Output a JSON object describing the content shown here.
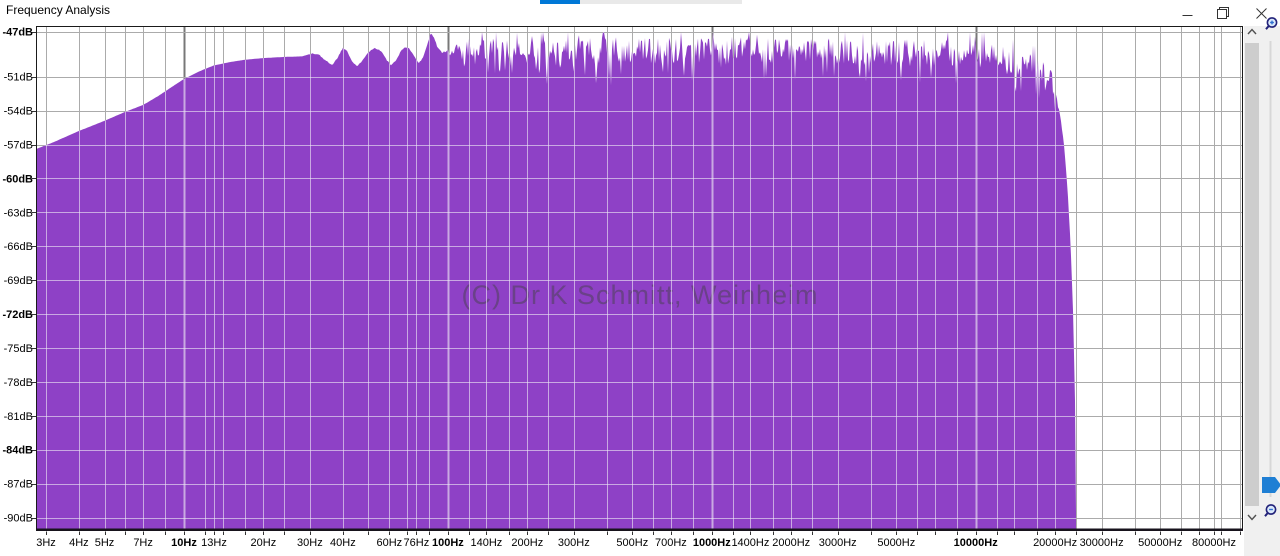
{
  "window": {
    "title": "Frequency Analysis"
  },
  "titlebar": {
    "icons": [
      "minimize-icon",
      "restore-icon",
      "close-icon"
    ]
  },
  "progress": {
    "percent": 20
  },
  "chart_data": {
    "type": "area",
    "title": "Frequency Analysis",
    "watermark": "(C) Dr K Schmitt, Weinheim",
    "x_axis": {
      "scale": "log",
      "unit": "Hz",
      "min_hz": 2.75,
      "max_hz": 103000,
      "labeled_ticks": [
        {
          "label": "3Hz",
          "hz": 3,
          "bold": false
        },
        {
          "label": "4Hz",
          "hz": 4,
          "bold": false
        },
        {
          "label": "5Hz",
          "hz": 5,
          "bold": false
        },
        {
          "label": "7Hz",
          "hz": 7,
          "bold": false
        },
        {
          "label": "10Hz",
          "hz": 10,
          "bold": true
        },
        {
          "label": "13Hz",
          "hz": 13,
          "bold": false
        },
        {
          "label": "20Hz",
          "hz": 20,
          "bold": false
        },
        {
          "label": "30Hz",
          "hz": 30,
          "bold": false
        },
        {
          "label": "40Hz",
          "hz": 40,
          "bold": false
        },
        {
          "label": "60Hz",
          "hz": 60,
          "bold": false
        },
        {
          "label": "76Hz",
          "hz": 76,
          "bold": false
        },
        {
          "label": "100Hz",
          "hz": 100,
          "bold": true
        },
        {
          "label": "140Hz",
          "hz": 140,
          "bold": false
        },
        {
          "label": "200Hz",
          "hz": 200,
          "bold": false
        },
        {
          "label": "300Hz",
          "hz": 300,
          "bold": false
        },
        {
          "label": "500Hz",
          "hz": 500,
          "bold": false
        },
        {
          "label": "700Hz",
          "hz": 700,
          "bold": false
        },
        {
          "label": "1000Hz",
          "hz": 1000,
          "bold": true
        },
        {
          "label": "1400Hz",
          "hz": 1400,
          "bold": false
        },
        {
          "label": "2000Hz",
          "hz": 2000,
          "bold": false
        },
        {
          "label": "3000Hz",
          "hz": 3000,
          "bold": false
        },
        {
          "label": "5000Hz",
          "hz": 5000,
          "bold": false
        },
        {
          "label": "10000Hz",
          "hz": 10000,
          "bold": true
        },
        {
          "label": "20000Hz",
          "hz": 20000,
          "bold": false
        },
        {
          "label": "30000Hz",
          "hz": 30000,
          "bold": false
        },
        {
          "label": "50000Hz",
          "hz": 50000,
          "bold": false
        },
        {
          "label": "80000Hz",
          "hz": 80000,
          "bold": false
        }
      ]
    },
    "y_axis": {
      "unit": "dB",
      "max_db": -47,
      "min_db": -90,
      "ticks": [
        {
          "label": "-47dB",
          "db": -47,
          "bold": true
        },
        {
          "label": "-51dB",
          "db": -51,
          "bold": false
        },
        {
          "label": "-54dB",
          "db": -54,
          "bold": false
        },
        {
          "label": "-57dB",
          "db": -57,
          "bold": false
        },
        {
          "label": "-60dB",
          "db": -60,
          "bold": true
        },
        {
          "label": "-63dB",
          "db": -63,
          "bold": false
        },
        {
          "label": "-66dB",
          "db": -66,
          "bold": false
        },
        {
          "label": "-69dB",
          "db": -69,
          "bold": false
        },
        {
          "label": "-72dB",
          "db": -72,
          "bold": true
        },
        {
          "label": "-75dB",
          "db": -75,
          "bold": false
        },
        {
          "label": "-78dB",
          "db": -78,
          "bold": false
        },
        {
          "label": "-81dB",
          "db": -81,
          "bold": false
        },
        {
          "label": "-84dB",
          "db": -84,
          "bold": true
        },
        {
          "label": "-87dB",
          "db": -87,
          "bold": false
        },
        {
          "label": "-90dB",
          "db": -90,
          "bold": false
        }
      ]
    },
    "grid": {
      "minor_mantissas": [
        1,
        1.2,
        1.4,
        1.7,
        2,
        2.4,
        3,
        4,
        5,
        6,
        7,
        8.5
      ],
      "bold_hz": [
        10,
        100,
        1000,
        10000
      ]
    },
    "series": {
      "fill_color": "#8e41c6",
      "envelope_db": [
        [
          2.75,
          -57.4
        ],
        [
          3.2,
          -56.8
        ],
        [
          4,
          -55.8
        ],
        [
          5,
          -54.9
        ],
        [
          6,
          -54.1
        ],
        [
          7,
          -53.5
        ],
        [
          8,
          -52.7
        ],
        [
          9,
          -51.9
        ],
        [
          10,
          -51.2
        ],
        [
          11.5,
          -50.5
        ],
        [
          13,
          -50.0
        ],
        [
          15,
          -49.7
        ],
        [
          17,
          -49.5
        ],
        [
          20,
          -49.35
        ],
        [
          24,
          -49.25
        ],
        [
          28,
          -49.2
        ],
        [
          30.5,
          -48.95
        ],
        [
          32.5,
          -49.05
        ],
        [
          34.5,
          -49.6
        ],
        [
          36.5,
          -49.95
        ],
        [
          38,
          -49.4
        ],
        [
          40,
          -48.45
        ],
        [
          41.5,
          -48.7
        ],
        [
          43.5,
          -49.7
        ],
        [
          45.5,
          -50.1
        ],
        [
          47.5,
          -49.5
        ],
        [
          50,
          -48.8
        ],
        [
          53,
          -48.45
        ],
        [
          56,
          -48.75
        ],
        [
          58.5,
          -49.5
        ],
        [
          61,
          -50.0
        ],
        [
          63.5,
          -49.6
        ],
        [
          66,
          -48.8
        ],
        [
          69,
          -48.35
        ],
        [
          72,
          -48.6
        ],
        [
          75,
          -49.3
        ],
        [
          77.5,
          -49.8
        ],
        [
          80,
          -49.4
        ],
        [
          83,
          -48.4
        ],
        [
          86,
          -47.15
        ],
        [
          88.5,
          -47.5
        ],
        [
          91,
          -48.3
        ],
        [
          95,
          -48.9
        ],
        [
          100,
          -48.65
        ],
        [
          140,
          -48.8
        ],
        [
          200,
          -48.7
        ],
        [
          300,
          -48.75
        ],
        [
          500,
          -48.7
        ],
        [
          1000,
          -48.65
        ],
        [
          2000,
          -48.75
        ],
        [
          4000,
          -48.8
        ],
        [
          7000,
          -48.9
        ],
        [
          10000,
          -49.0
        ],
        [
          12500,
          -49.3
        ],
        [
          15000,
          -49.75
        ],
        [
          17000,
          -50.2
        ],
        [
          18500,
          -50.8
        ],
        [
          19600,
          -51.5
        ],
        [
          20000,
          -52.0
        ],
        [
          20800,
          -54.0
        ],
        [
          21600,
          -57.0
        ],
        [
          22300,
          -61.0
        ],
        [
          22900,
          -66.0
        ],
        [
          23400,
          -72.0
        ],
        [
          23800,
          -80.0
        ],
        [
          24000,
          -90.0
        ]
      ],
      "noise": {
        "seed": 1337,
        "region_hz": [
          95,
          21000
        ],
        "jitter_db": 1.2,
        "comb_hz": [
          95,
          420
        ],
        "comb_db": 0.85
      }
    }
  },
  "colors": {
    "accent_blue": "#0078d7",
    "fill_purple": "#8e41c6",
    "grid_gray": "#ababab",
    "grid_bold_gray": "#787878",
    "panel_gray": "#f0f0f0",
    "scroll_thumb": "#cdcdcd"
  },
  "right_panel": {
    "icons": [
      "scroll-up-icon",
      "scroll-down-icon",
      "zoom-in-icon",
      "zoom-slider-handle",
      "zoom-out-icon"
    ]
  }
}
